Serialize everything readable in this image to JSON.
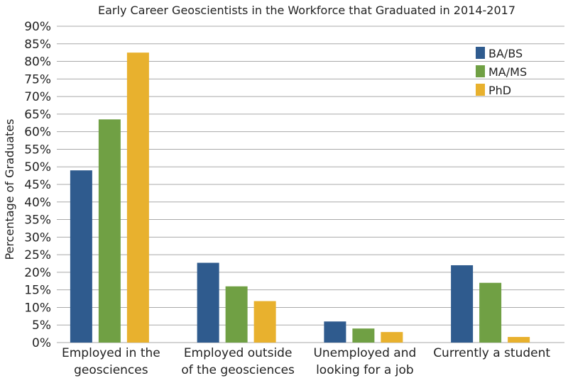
{
  "chart_data": {
    "type": "bar",
    "title": "Early Career Geoscientists in the Workforce that Graduated in 2014-2017",
    "xlabel": "",
    "ylabel": "Percentage of Graduates",
    "ylim": [
      0,
      90
    ],
    "yticks": [
      "0%",
      "5%",
      "10%",
      "15%",
      "20%",
      "25%",
      "30%",
      "35%",
      "40%",
      "45%",
      "50%",
      "55%",
      "60%",
      "65%",
      "70%",
      "75%",
      "80%",
      "85%",
      "90%"
    ],
    "grid": true,
    "legend_position": "top-right",
    "categories": [
      [
        "Employed in the",
        "geosciences"
      ],
      [
        "Employed outside",
        "of the geosciences"
      ],
      [
        "Unemployed and",
        "looking for a job"
      ],
      [
        "Currently a student"
      ]
    ],
    "series": [
      {
        "name": "BA/BS",
        "color": "#2f5b8e",
        "values": [
          49,
          22.7,
          6,
          22
        ]
      },
      {
        "name": "MA/MS",
        "color": "#70a044",
        "values": [
          63.5,
          16,
          4,
          17
        ]
      },
      {
        "name": "PhD",
        "color": "#e8b12e",
        "values": [
          82.5,
          11.8,
          3,
          1.6
        ]
      }
    ]
  }
}
